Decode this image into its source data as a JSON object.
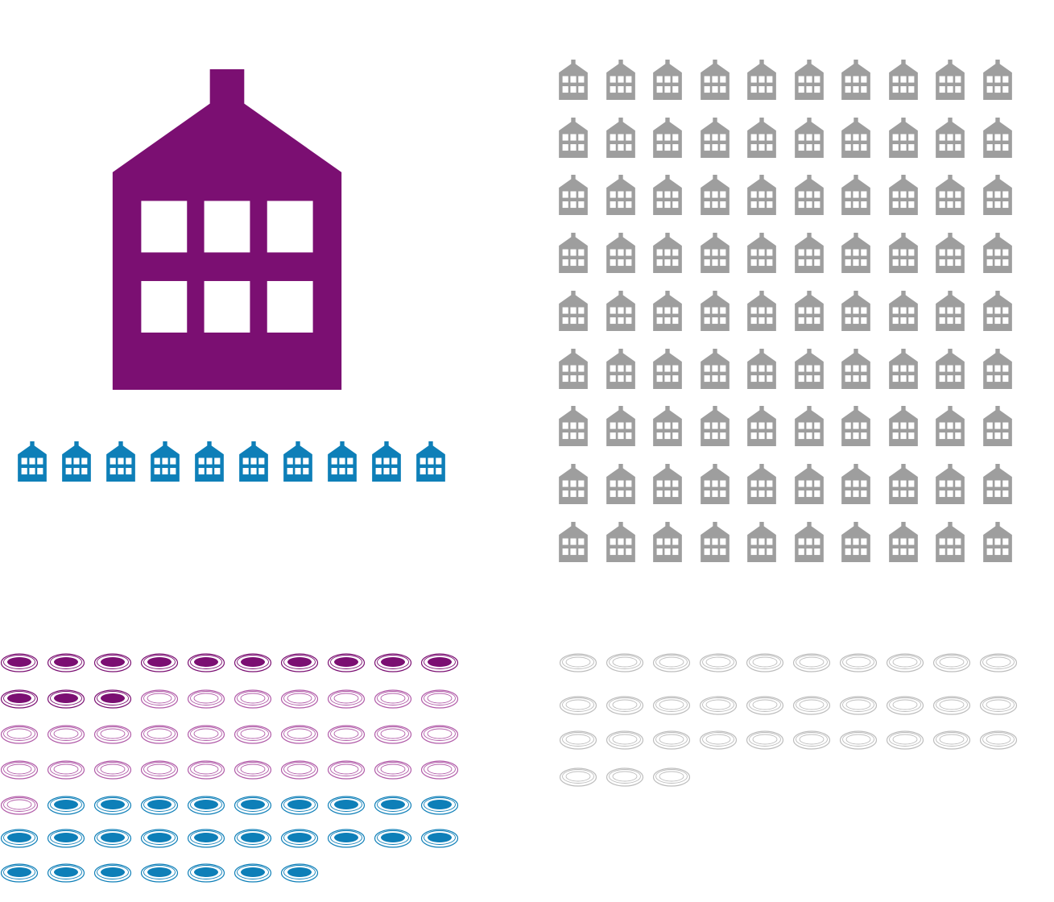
{
  "infographic": {
    "big_house": {
      "icon": "house-icon",
      "color": "#7B0F72"
    },
    "house_row": {
      "icon": "house-icon",
      "count": 10,
      "color": "#0E7FB8"
    },
    "house_grid": {
      "icon": "house-icon",
      "count": 90,
      "columns": 10,
      "color": "#9E9E9E"
    },
    "plates_left": {
      "icon": "plate-icon",
      "columns": 10,
      "segments": [
        {
          "style": "filled",
          "count": 13,
          "color": "#7B0F72"
        },
        {
          "style": "outline",
          "count": 28,
          "color": "#B15BA8"
        },
        {
          "style": "filled",
          "count": 26,
          "color": "#0E7FB8"
        }
      ]
    },
    "plates_right": {
      "icon": "plate-icon",
      "columns": 10,
      "segments": [
        {
          "style": "outline",
          "count": 33,
          "color": "#BDBDBD"
        }
      ]
    }
  }
}
